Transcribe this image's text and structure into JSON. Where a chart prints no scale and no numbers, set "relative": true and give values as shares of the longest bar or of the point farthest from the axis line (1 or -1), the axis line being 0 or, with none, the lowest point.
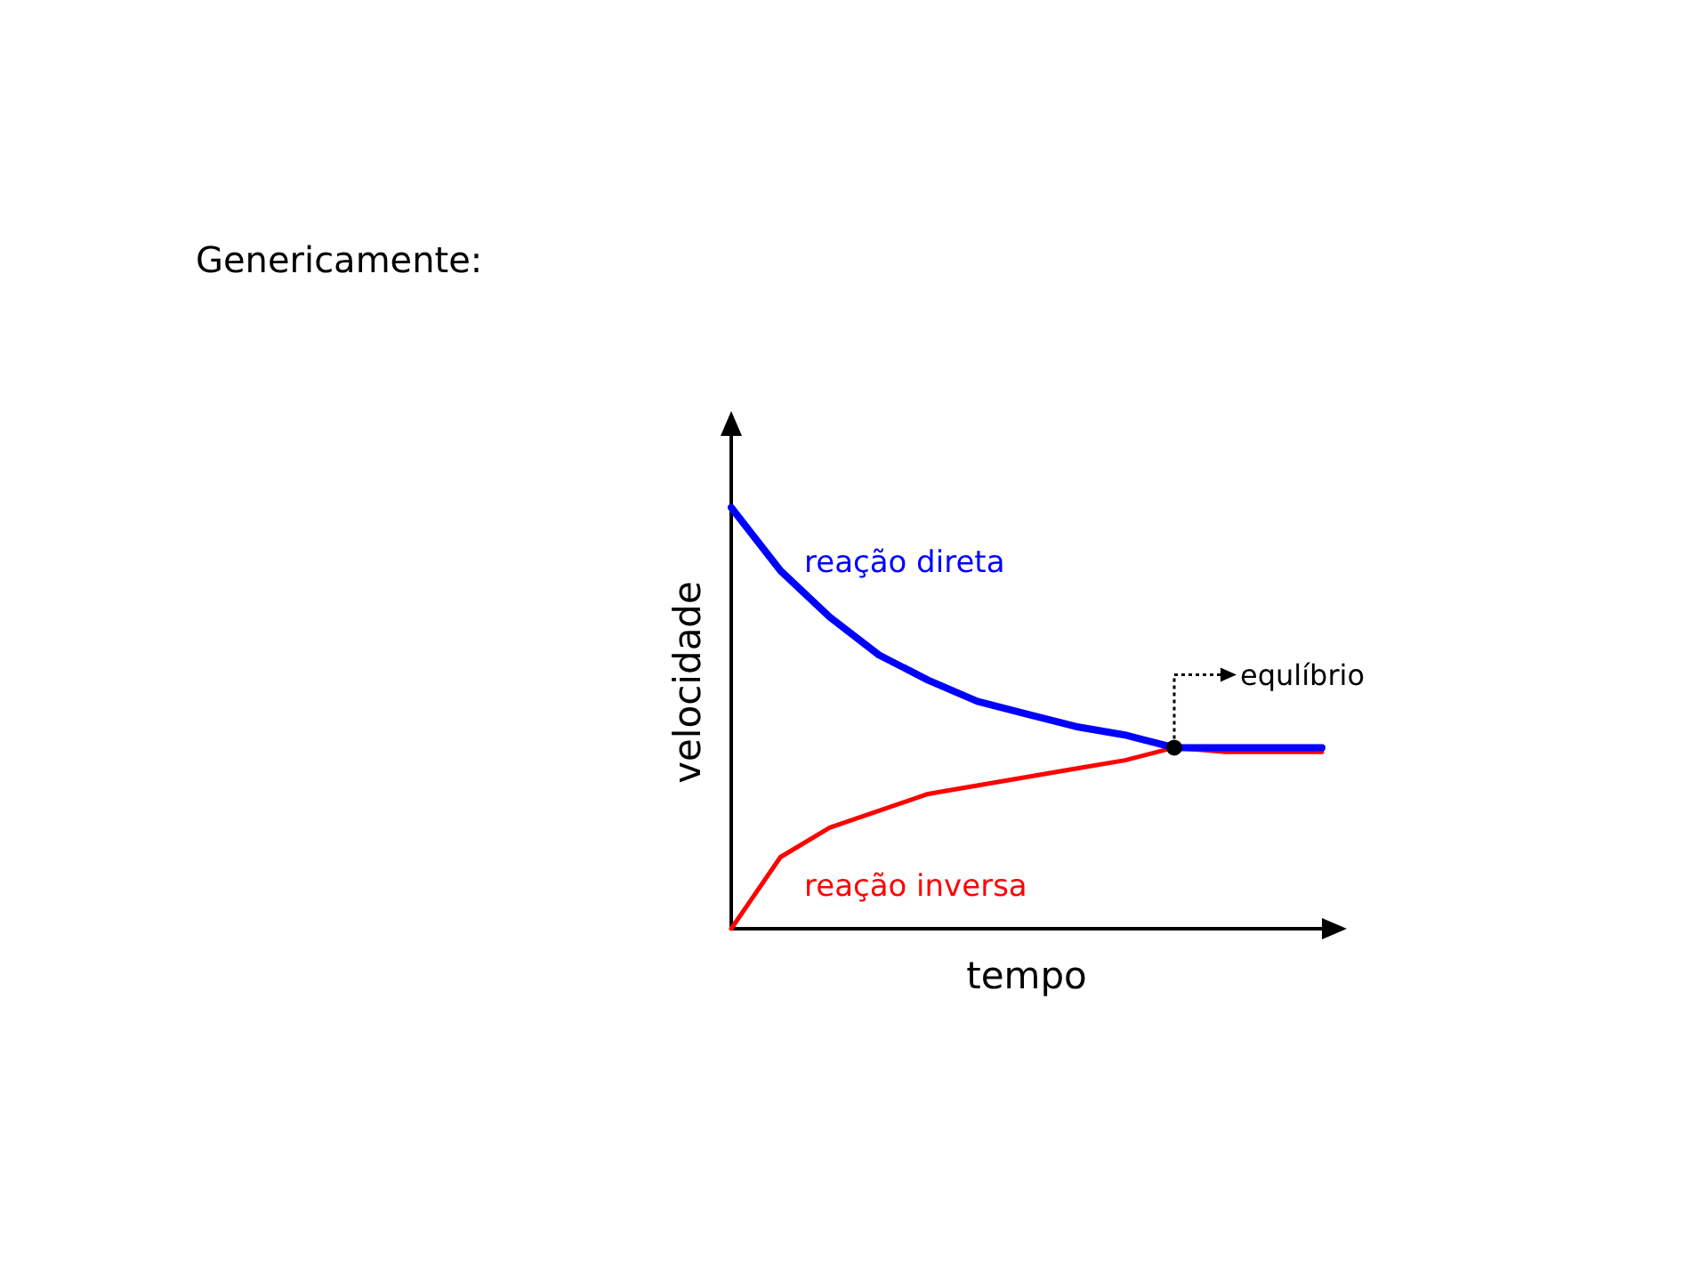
{
  "chart_data": {
    "type": "line",
    "title": "Genericamente:",
    "xlabel": "tempo",
    "ylabel": "velocidade",
    "relative": true,
    "grid": false,
    "legend": false,
    "marker": "none",
    "categories": [
      null,
      null,
      null,
      null,
      null,
      null,
      null,
      null,
      null,
      null,
      null,
      null,
      null
    ],
    "series": [
      {
        "name": "reação direta",
        "color": "#0000ff",
        "values": [
          1.0,
          0.85,
          0.74,
          0.65,
          0.59,
          0.54,
          0.51,
          0.48,
          0.46,
          0.43,
          0.43,
          0.43,
          0.43
        ]
      },
      {
        "name": "reação inversa",
        "color": "#ff0000",
        "values": [
          0,
          0.17,
          0.24,
          0.28,
          0.32,
          0.34,
          0.36,
          0.38,
          0.4,
          0.43,
          0.42,
          0.42,
          0.42
        ]
      }
    ],
    "annotations": [
      "equlíbrio"
    ]
  }
}
